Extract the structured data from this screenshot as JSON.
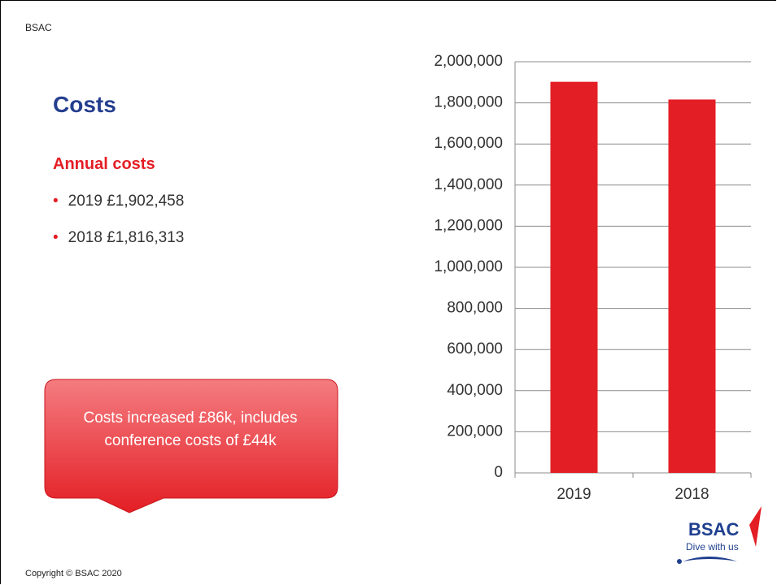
{
  "header": "BSAC",
  "title": "Costs",
  "subtitle": "Annual costs",
  "bullets": [
    "2019 £1,902,458",
    "2018 £1,816,313"
  ],
  "callout": "Costs increased £86k, includes conference costs of £44k",
  "footer": "Copyright © BSAC 2020",
  "logo": {
    "name": "BSAC",
    "tagline": "Dive with us"
  },
  "chart_data": {
    "type": "bar",
    "categories": [
      "2019",
      "2018"
    ],
    "values": [
      1902458,
      1816313
    ],
    "color": "#e31e24",
    "ylim": [
      0,
      2000000
    ],
    "yticks": [
      0,
      {
        "value": 200000,
        "label": "200,000"
      },
      {
        "value": 400000,
        "label": "400,000"
      },
      {
        "value": 600000,
        "label": "600,000"
      },
      {
        "value": 800000,
        "label": "800,000"
      },
      {
        "value": 1000000,
        "label": "1,000,000"
      },
      {
        "value": 1200000,
        "label": "1,200,000"
      },
      {
        "value": 1400000,
        "label": "1,400,000"
      },
      {
        "value": 1600000,
        "label": "1,600,000"
      },
      {
        "value": 1800000,
        "label": "1,800,000"
      },
      {
        "value": 2000000,
        "label": "2,000,000"
      }
    ],
    "grid": true
  }
}
